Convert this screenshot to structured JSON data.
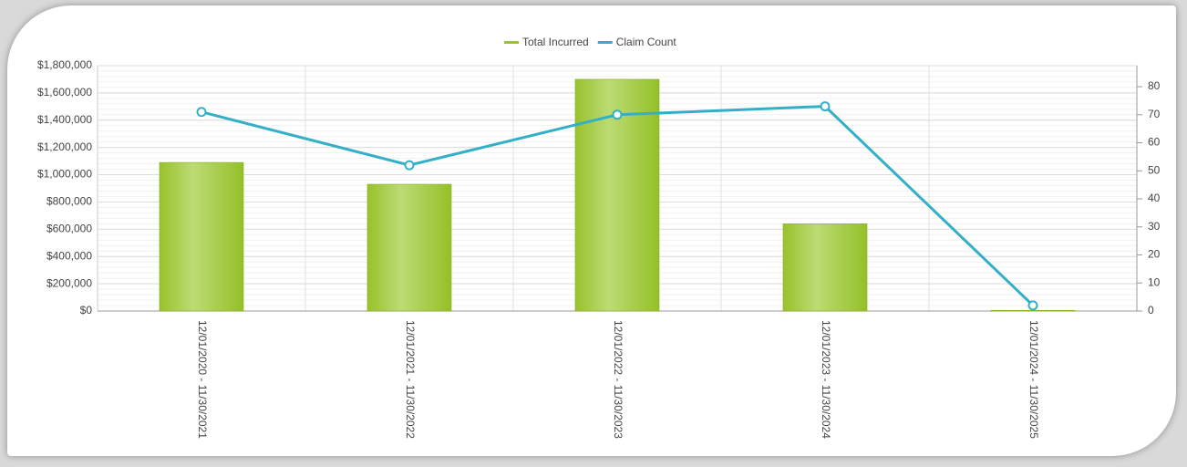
{
  "chart_data": {
    "type": "bar_line",
    "categories": [
      "12/01/2020 - 11/30/2021",
      "12/01/2021 - 11/30/2022",
      "12/01/2022 - 11/30/2023",
      "12/01/2023 - 11/30/2024",
      "12/01/2024 - 11/30/2025"
    ],
    "series": [
      {
        "name": "Total Incurred",
        "color": "#9ac52f",
        "type": "bar",
        "values": [
          1090000,
          930000,
          1700000,
          640000,
          5000
        ]
      },
      {
        "name": "Claim Count",
        "color": "#34afc8",
        "type": "line",
        "axis": "y2",
        "values": [
          71,
          52,
          70,
          73,
          2
        ]
      }
    ],
    "ylim": [
      0,
      1800000
    ],
    "yticks": [
      {
        "value": 0,
        "label": "$0"
      },
      {
        "value": 200000,
        "label": "$200,000"
      },
      {
        "value": 400000,
        "label": "$400,000"
      },
      {
        "value": 600000,
        "label": "$600,000"
      },
      {
        "value": 800000,
        "label": "$800,000"
      },
      {
        "value": 1000000,
        "label": "$1,000,000"
      },
      {
        "value": 1200000,
        "label": "$1,200,000"
      },
      {
        "value": 1400000,
        "label": "$1,400,000"
      },
      {
        "value": 1600000,
        "label": "$1,600,000"
      },
      {
        "value": 1800000,
        "label": "$1,800,000"
      }
    ],
    "y2lim": [
      0,
      87.5
    ],
    "y2ticks": [
      0,
      10,
      20,
      30,
      40,
      50,
      60,
      70,
      80
    ],
    "grid": true,
    "legend": "top"
  }
}
